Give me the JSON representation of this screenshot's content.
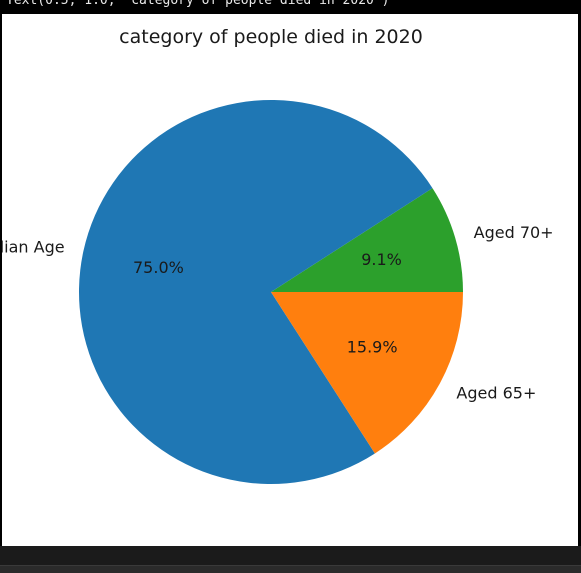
{
  "output_header": {
    "text": "Text(0.5, 1.0, 'category of people died in 2020')"
  },
  "colors": {
    "page_background": "#000000",
    "figure_background": "#ffffff",
    "slice_blue": "#1f77b4",
    "slice_orange": "#ff7f0e",
    "slice_green": "#2ca02c",
    "text": "#1a1a1a"
  },
  "chart_data": {
    "type": "pie",
    "title": "category of people died in 2020",
    "labels": [
      "Aged 70+",
      "Median Age",
      "Aged 65+"
    ],
    "values": [
      9.1,
      75.0,
      15.9
    ],
    "percent_labels": [
      "9.1%",
      "75.0%",
      "15.9%"
    ],
    "colors": [
      "#2ca02c",
      "#1f77b4",
      "#ff7f0e"
    ],
    "start_angle_deg": 0,
    "direction": "counterclockwise",
    "legend": "none"
  }
}
